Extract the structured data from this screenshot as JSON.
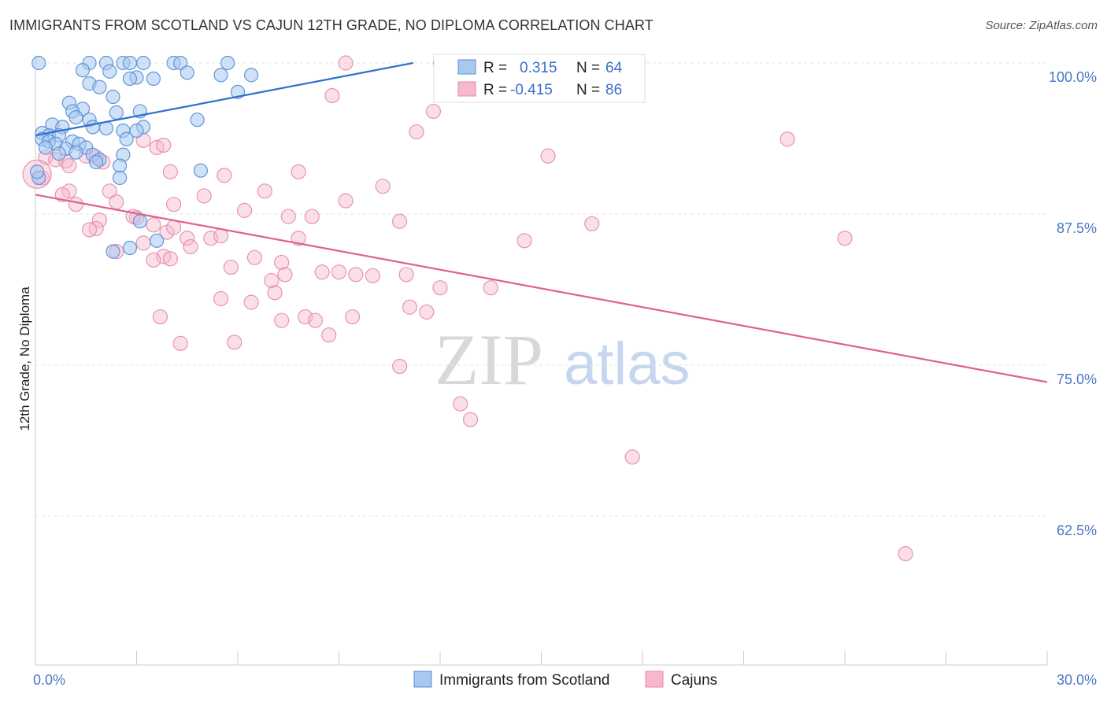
{
  "title": "IMMIGRANTS FROM SCOTLAND VS CAJUN 12TH GRADE, NO DIPLOMA CORRELATION CHART",
  "source": "Source: ZipAtlas.com",
  "watermark": {
    "zip": "ZIP",
    "atlas": "atlas"
  },
  "colors": {
    "scotland_fill": "#a8c8f0",
    "scotland_stroke": "#5b8fd6",
    "scotland_line": "#2e6fcf",
    "cajun_fill": "#f7b8cc",
    "cajun_stroke": "#e48aa8",
    "cajun_line": "#e0608f",
    "grid": "#e3e3e3",
    "tick_label": "#4a78c8"
  },
  "chart_data": {
    "type": "scatter",
    "xlabel": "",
    "ylabel": "12th Grade, No Diploma",
    "xlim": [
      0,
      30
    ],
    "ylim": [
      50,
      101.5
    ],
    "x_tick_labels": {
      "left": "0.0%",
      "right": "30.0%"
    },
    "y_ticks": [
      {
        "value": 100.0,
        "label": "100.0%"
      },
      {
        "value": 87.5,
        "label": "87.5%"
      },
      {
        "value": 75.0,
        "label": "75.0%"
      },
      {
        "value": 62.5,
        "label": "62.5%"
      }
    ],
    "legend": {
      "r_label": "R =",
      "n_label": "N =",
      "entries": [
        {
          "name": "Immigrants from Scotland",
          "r": "0.315",
          "n": "64"
        },
        {
          "name": "Cajuns",
          "r": "-0.415",
          "n": "86"
        }
      ]
    },
    "series": [
      {
        "name": "Immigrants from Scotland",
        "trend": {
          "x": [
            0.0,
            11.2
          ],
          "y": [
            94.0,
            100.0
          ]
        },
        "points": [
          [
            2.1,
            100
          ],
          [
            2.6,
            100
          ],
          [
            3.2,
            100
          ],
          [
            4.1,
            100
          ],
          [
            4.3,
            100
          ],
          [
            5.7,
            100
          ],
          [
            12.0,
            100
          ],
          [
            0.1,
            100
          ],
          [
            1.6,
            100
          ],
          [
            2.8,
            100
          ],
          [
            1.4,
            99.4
          ],
          [
            2.2,
            99.3
          ],
          [
            3.0,
            98.8
          ],
          [
            4.5,
            99.2
          ],
          [
            5.5,
            99.0
          ],
          [
            6.4,
            99.0
          ],
          [
            1.6,
            98.3
          ],
          [
            2.8,
            98.7
          ],
          [
            3.5,
            98.7
          ],
          [
            1.9,
            98.0
          ],
          [
            2.3,
            97.2
          ],
          [
            6.0,
            97.6
          ],
          [
            1.0,
            96.7
          ],
          [
            1.4,
            96.2
          ],
          [
            1.1,
            96.0
          ],
          [
            1.2,
            95.5
          ],
          [
            3.1,
            96.0
          ],
          [
            2.4,
            95.9
          ],
          [
            1.6,
            95.3
          ],
          [
            4.8,
            95.3
          ],
          [
            0.5,
            94.9
          ],
          [
            0.8,
            94.7
          ],
          [
            1.7,
            94.7
          ],
          [
            3.2,
            94.7
          ],
          [
            2.1,
            94.6
          ],
          [
            2.6,
            94.4
          ],
          [
            3.0,
            94.4
          ],
          [
            0.2,
            94.2
          ],
          [
            0.4,
            94.0
          ],
          [
            0.7,
            94.0
          ],
          [
            0.2,
            93.7
          ],
          [
            0.4,
            93.5
          ],
          [
            0.6,
            93.3
          ],
          [
            1.1,
            93.5
          ],
          [
            1.3,
            93.3
          ],
          [
            1.5,
            93.0
          ],
          [
            2.7,
            93.7
          ],
          [
            0.3,
            93.0
          ],
          [
            0.9,
            92.9
          ],
          [
            1.2,
            92.6
          ],
          [
            0.7,
            92.5
          ],
          [
            1.7,
            92.4
          ],
          [
            2.6,
            92.4
          ],
          [
            1.9,
            92.0
          ],
          [
            1.8,
            91.8
          ],
          [
            2.5,
            91.5
          ],
          [
            4.9,
            91.1
          ],
          [
            2.5,
            90.5
          ],
          [
            0.1,
            90.5
          ],
          [
            0.05,
            91.0
          ],
          [
            3.1,
            86.9
          ],
          [
            3.6,
            85.3
          ],
          [
            2.3,
            84.4
          ],
          [
            2.8,
            84.7
          ]
        ]
      },
      {
        "name": "Cajuns",
        "trend": {
          "x": [
            0.0,
            30.0
          ],
          "y": [
            89.1,
            73.6
          ]
        },
        "points": [
          [
            9.2,
            100
          ],
          [
            8.8,
            97.3
          ],
          [
            11.8,
            96.0
          ],
          [
            11.3,
            94.3
          ],
          [
            22.3,
            93.7
          ],
          [
            3.2,
            93.6
          ],
          [
            3.6,
            93.0
          ],
          [
            3.8,
            93.2
          ],
          [
            15.2,
            92.3
          ],
          [
            1.5,
            92.3
          ],
          [
            0.3,
            92.2
          ],
          [
            0.6,
            92.0
          ],
          [
            0.9,
            91.9
          ],
          [
            2.0,
            91.8
          ],
          [
            1.8,
            92.2
          ],
          [
            4.0,
            91.0
          ],
          [
            7.8,
            91.0
          ],
          [
            5.6,
            90.7
          ],
          [
            1.0,
            91.5
          ],
          [
            0.2,
            90.5
          ],
          [
            10.3,
            89.8
          ],
          [
            1.0,
            89.4
          ],
          [
            2.2,
            89.4
          ],
          [
            0.8,
            89.1
          ],
          [
            5.0,
            89.0
          ],
          [
            6.8,
            89.4
          ],
          [
            9.2,
            88.6
          ],
          [
            2.4,
            88.5
          ],
          [
            1.2,
            88.3
          ],
          [
            4.1,
            88.3
          ],
          [
            6.2,
            87.8
          ],
          [
            7.5,
            87.3
          ],
          [
            8.2,
            87.3
          ],
          [
            3.0,
            87.2
          ],
          [
            1.9,
            87.0
          ],
          [
            3.5,
            86.6
          ],
          [
            10.8,
            86.9
          ],
          [
            16.5,
            86.7
          ],
          [
            1.8,
            86.3
          ],
          [
            3.9,
            86.0
          ],
          [
            4.5,
            85.5
          ],
          [
            5.2,
            85.5
          ],
          [
            5.5,
            85.7
          ],
          [
            7.8,
            85.5
          ],
          [
            14.5,
            85.3
          ],
          [
            24.0,
            85.5
          ],
          [
            3.2,
            85.1
          ],
          [
            4.6,
            84.8
          ],
          [
            2.4,
            84.4
          ],
          [
            3.8,
            84.0
          ],
          [
            4.0,
            83.8
          ],
          [
            3.5,
            83.7
          ],
          [
            6.5,
            83.9
          ],
          [
            7.3,
            83.5
          ],
          [
            5.8,
            83.1
          ],
          [
            9.0,
            82.7
          ],
          [
            9.5,
            82.5
          ],
          [
            11.0,
            82.5
          ],
          [
            10.0,
            82.4
          ],
          [
            8.5,
            82.7
          ],
          [
            7.4,
            82.5
          ],
          [
            7.0,
            82.0
          ],
          [
            12.0,
            81.4
          ],
          [
            13.5,
            81.4
          ],
          [
            7.1,
            81.0
          ],
          [
            5.5,
            80.5
          ],
          [
            6.4,
            80.2
          ],
          [
            11.1,
            79.8
          ],
          [
            11.6,
            79.4
          ],
          [
            3.7,
            79.0
          ],
          [
            8.0,
            79.0
          ],
          [
            9.4,
            79.0
          ],
          [
            8.3,
            78.7
          ],
          [
            7.3,
            78.7
          ],
          [
            8.7,
            77.5
          ],
          [
            4.3,
            76.8
          ],
          [
            5.9,
            76.9
          ],
          [
            10.8,
            74.9
          ],
          [
            12.6,
            71.8
          ],
          [
            12.9,
            70.5
          ],
          [
            17.7,
            67.4
          ],
          [
            25.8,
            59.4
          ],
          [
            0.05,
            90.8
          ],
          [
            2.9,
            87.3
          ],
          [
            4.1,
            86.4
          ],
          [
            1.6,
            86.2
          ]
        ]
      }
    ]
  }
}
